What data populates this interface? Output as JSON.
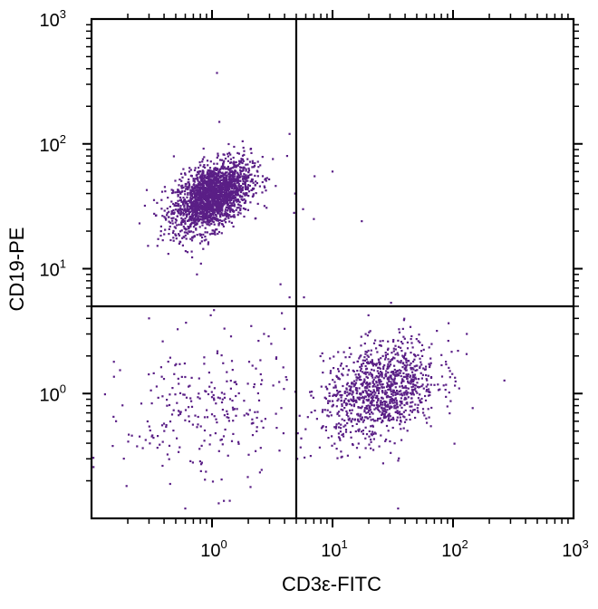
{
  "chart_data": {
    "type": "scatter",
    "title": "",
    "xlabel": "CD3ε-FITC",
    "ylabel": "CD19-PE",
    "x_scale": "log",
    "y_scale": "log",
    "xlim": [
      0.1,
      1000
    ],
    "ylim": [
      0.1,
      1000
    ],
    "x_ticks": [
      {
        "value": 1,
        "base": "10",
        "exp": "0"
      },
      {
        "value": 10,
        "base": "10",
        "exp": "1"
      },
      {
        "value": 100,
        "base": "10",
        "exp": "2"
      },
      {
        "value": 1000,
        "base": "10",
        "exp": "3"
      }
    ],
    "y_ticks": [
      {
        "value": 1,
        "base": "10",
        "exp": "0"
      },
      {
        "value": 10,
        "base": "10",
        "exp": "1"
      },
      {
        "value": 100,
        "base": "10",
        "exp": "2"
      },
      {
        "value": 1000,
        "base": "10",
        "exp": "3"
      }
    ],
    "quadrant_gates": {
      "x": 5,
      "y": 5
    },
    "grid": false,
    "legend": "none",
    "point_color": "#5a1f86",
    "populations": [
      {
        "cx": 1.0,
        "cy": 38,
        "sx": 0.16,
        "sy": 0.14,
        "rho": 0.45,
        "n": 2200
      },
      {
        "cx": 25,
        "cy": 1.05,
        "sx": 0.24,
        "sy": 0.2,
        "rho": 0.3,
        "n": 1100
      },
      {
        "cx": 0.9,
        "cy": 0.7,
        "sx": 0.34,
        "sy": 0.3,
        "rho": 0.1,
        "n": 260
      }
    ],
    "outliers": [
      [
        1.1,
        370
      ],
      [
        1.15,
        150
      ],
      [
        4.4,
        120
      ],
      [
        4.2,
        80
      ],
      [
        4.9,
        40
      ],
      [
        4.8,
        28
      ],
      [
        7.1,
        55
      ],
      [
        10,
        60
      ],
      [
        5.7,
        30
      ],
      [
        7.0,
        25
      ],
      [
        17.5,
        24
      ],
      [
        0.75,
        9
      ],
      [
        3.7,
        7.5
      ],
      [
        4.4,
        5.9
      ],
      [
        5.8,
        5.9
      ],
      [
        4.0,
        3.3
      ],
      [
        3.8,
        4.4
      ],
      [
        0.3,
        4.0
      ],
      [
        2.7,
        3.0
      ],
      [
        3.1,
        2.5
      ],
      [
        130,
        3.0
      ],
      [
        110,
        2.2
      ],
      [
        35,
        0.12
      ],
      [
        0.6,
        0.12
      ],
      [
        0.16,
        0.6
      ],
      [
        0.15,
        0.38
      ],
      [
        5.1,
        0.3
      ],
      [
        5.0,
        0.48
      ]
    ]
  }
}
